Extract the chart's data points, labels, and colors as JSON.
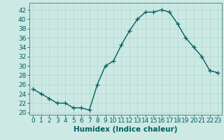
{
  "x": [
    0,
    1,
    2,
    3,
    4,
    5,
    6,
    7,
    8,
    9,
    10,
    11,
    12,
    13,
    14,
    15,
    16,
    17,
    18,
    19,
    20,
    21,
    22,
    23
  ],
  "y": [
    25,
    24,
    23,
    22,
    22,
    21,
    21,
    20.5,
    26,
    30,
    31,
    34.5,
    37.5,
    40,
    41.5,
    41.5,
    42,
    41.5,
    39,
    36,
    34,
    32,
    29,
    28.5
  ],
  "line_color": "#006060",
  "marker": "+",
  "marker_size": 4,
  "bg_color": "#cce9e4",
  "grid_major_color": "#b8d8d2",
  "grid_minor_color": "#c8e4de",
  "xlabel": "Humidex (Indice chaleur)",
  "xlim": [
    -0.5,
    23.5
  ],
  "ylim": [
    19.5,
    43.5
  ],
  "yticks": [
    20,
    22,
    24,
    26,
    28,
    30,
    32,
    34,
    36,
    38,
    40,
    42
  ],
  "xticks": [
    0,
    1,
    2,
    3,
    4,
    5,
    6,
    7,
    8,
    9,
    10,
    11,
    12,
    13,
    14,
    15,
    16,
    17,
    18,
    19,
    20,
    21,
    22,
    23
  ],
  "tick_fontsize": 6.5,
  "label_fontsize": 7.5
}
